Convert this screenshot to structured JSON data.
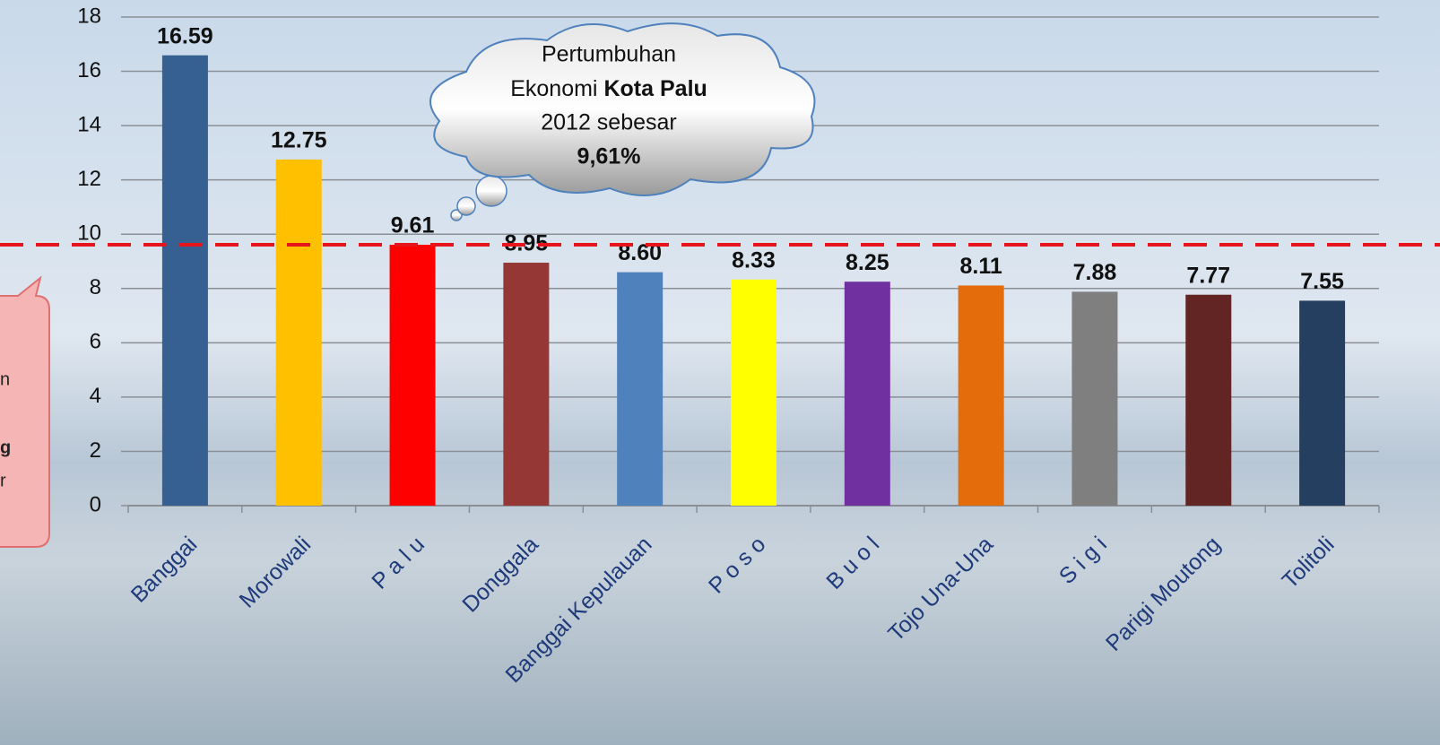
{
  "chart_data": {
    "type": "bar",
    "categories": [
      "Banggai",
      "Morowali",
      "P a l u",
      "Donggala",
      "Banggai Kepulauan",
      "P o s o",
      "B u o l",
      "Tojo Una-Una",
      "S i g i",
      "Parigi Moutong",
      "Tolitoli"
    ],
    "values": [
      16.59,
      12.75,
      9.61,
      8.95,
      8.6,
      8.33,
      8.25,
      8.11,
      7.88,
      7.77,
      7.55
    ],
    "value_labels": [
      "16.59",
      "12.75",
      "9.61",
      "8.95",
      "8.60",
      "8.33",
      "8.25",
      "8.11",
      "7.88",
      "7.77",
      "7.55"
    ],
    "colors": [
      "#366092",
      "#ffc000",
      "#ff0000",
      "#953735",
      "#4f81bd",
      "#ffff00",
      "#7030a0",
      "#e46c0a",
      "#7f7f7f",
      "#632523",
      "#243f60"
    ],
    "ylim": [
      0,
      18
    ],
    "yticks": [
      0,
      2,
      4,
      6,
      8,
      10,
      12,
      14,
      16,
      18
    ],
    "grid": true,
    "reference_line": {
      "value": 9.61,
      "color": "#e8141b"
    },
    "annotation": {
      "line1": "Pertumbuhan",
      "line2": "Ekonomi",
      "line2_bold": "Kota Palu",
      "line3": "2012 sebesar",
      "line4": "9,61%"
    },
    "left_callout_fragments": [
      "n",
      "g",
      "r"
    ]
  }
}
